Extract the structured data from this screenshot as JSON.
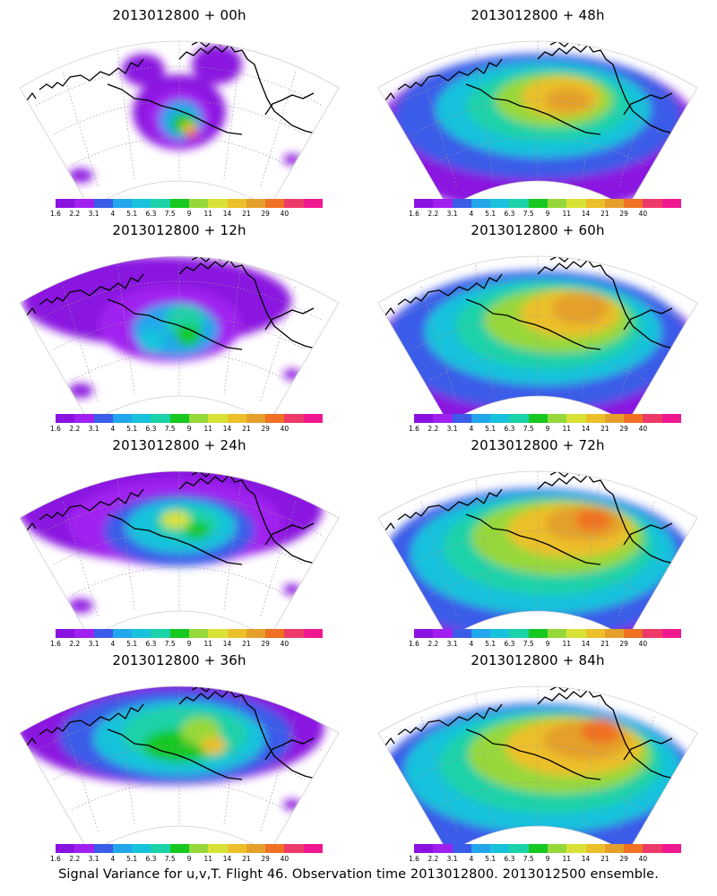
{
  "palette": [
    "#8a12e0",
    "#a020f0",
    "#3a5ce8",
    "#22a6ec",
    "#18c2dc",
    "#1cd2a8",
    "#16c820",
    "#96d83a",
    "#d8e236",
    "#ecc02a",
    "#e4a02a",
    "#f07024",
    "#ee3a68",
    "#f01890"
  ],
  "colorbar_labels": [
    "1.6",
    "2.2",
    "3.1",
    "4",
    "5.1",
    "6.3",
    "7.5",
    "9",
    "11",
    "14",
    "21",
    "29",
    "40"
  ],
  "panels": [
    {
      "title": "2013012800 + 00h",
      "stage": 0
    },
    {
      "title": "2013012800 + 48h",
      "stage": 4
    },
    {
      "title": "2013012800 + 12h",
      "stage": 1
    },
    {
      "title": "2013012800 + 60h",
      "stage": 5
    },
    {
      "title": "2013012800 + 24h",
      "stage": 2
    },
    {
      "title": "2013012800 + 72h",
      "stage": 6
    },
    {
      "title": "2013012800 + 36h",
      "stage": 3
    },
    {
      "title": "2013012800 + 84h",
      "stage": 7
    }
  ],
  "caption": "Signal Variance for u,v,T. Flight 46. Observation time 2013012800. 2013012500 ensemble."
}
